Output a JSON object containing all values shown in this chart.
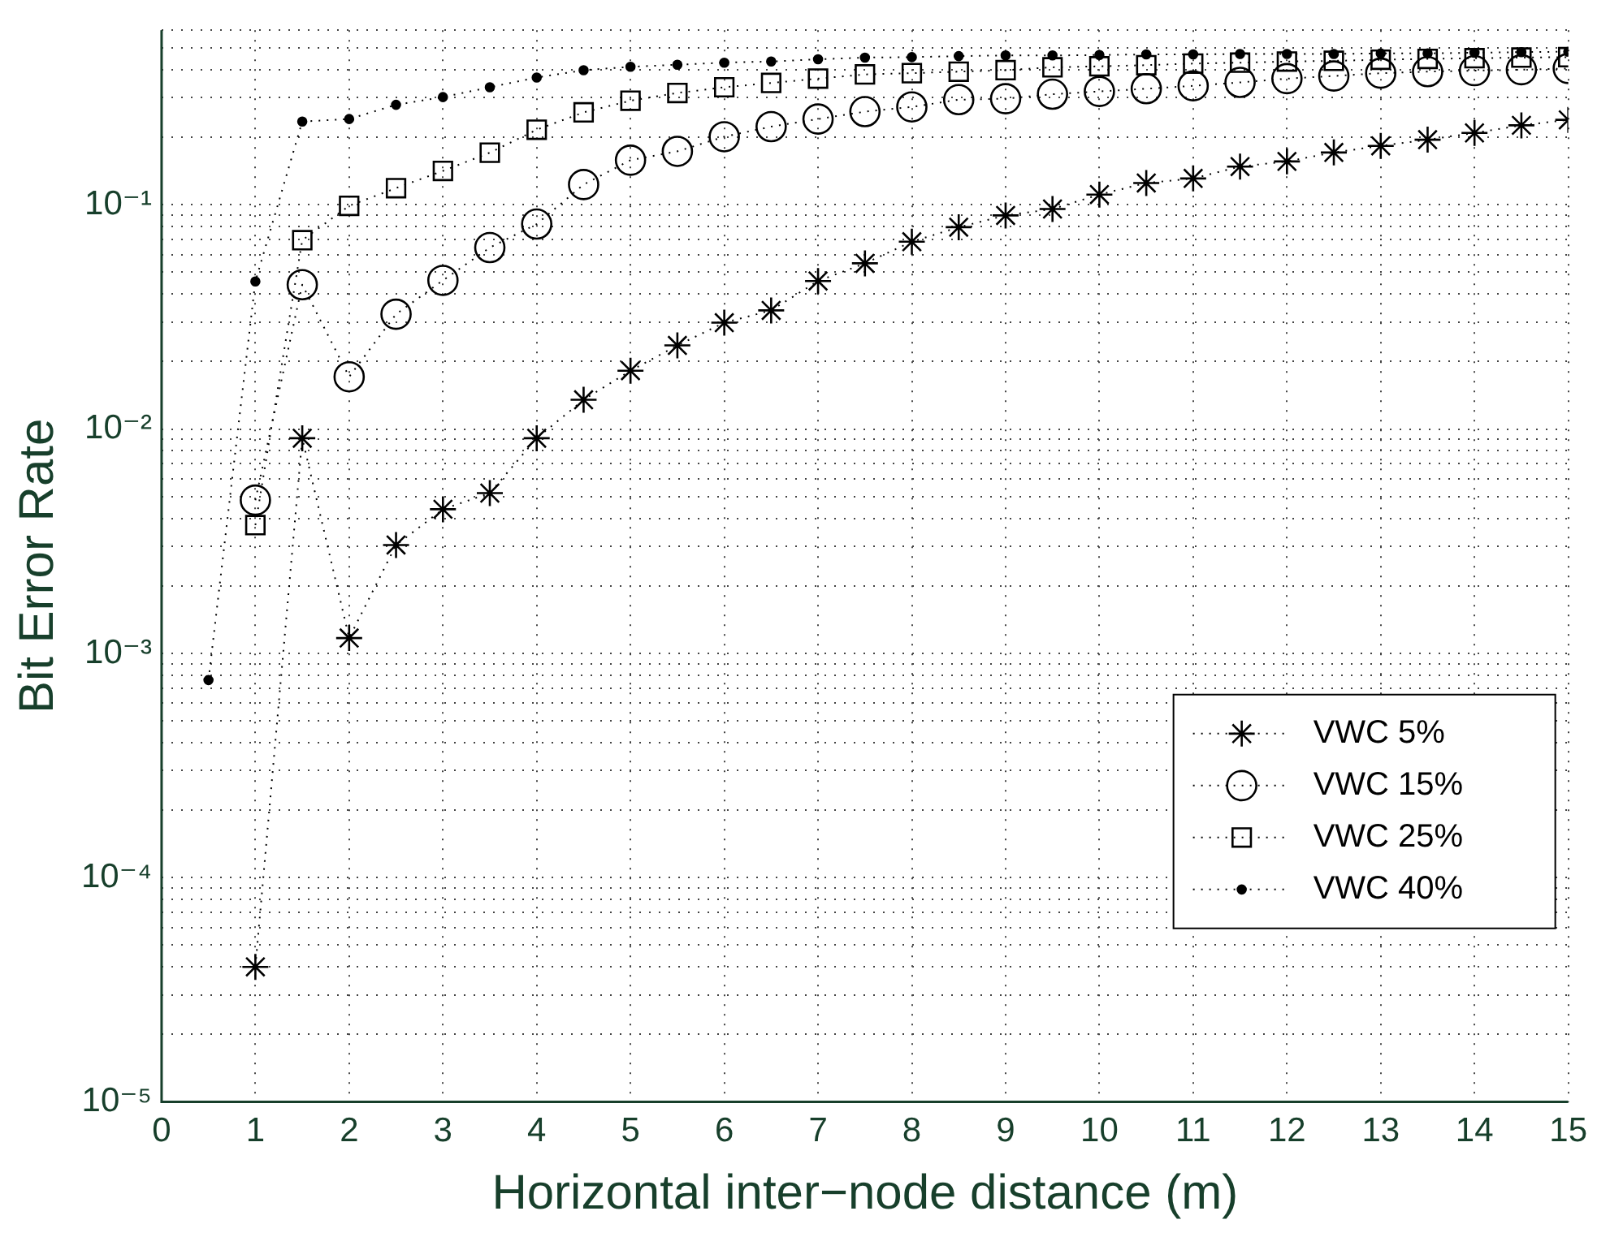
{
  "chart_data": {
    "type": "line",
    "xlabel": "Horizontal inter−node distance (m)",
    "ylabel": "Bit Error Rate",
    "log": "y",
    "grid": true,
    "legend": "right",
    "line_style": "dotted",
    "xlim": [
      0,
      15
    ],
    "xticks": [
      0,
      1,
      2,
      3,
      4,
      5,
      6,
      7,
      8,
      9,
      10,
      11,
      12,
      13,
      14,
      15
    ],
    "ylim": [
      1e-05,
      0.6
    ],
    "yticks": [
      {
        "value": 1e-05,
        "label": "10⁻⁵"
      },
      {
        "value": 2e-05,
        "label": null
      },
      {
        "value": 3e-05,
        "label": null
      },
      {
        "value": 4e-05,
        "label": null
      },
      {
        "value": 5e-05,
        "label": null
      },
      {
        "value": 6e-05,
        "label": null
      },
      {
        "value": 7e-05,
        "label": null
      },
      {
        "value": 8e-05,
        "label": null
      },
      {
        "value": 9e-05,
        "label": null
      },
      {
        "value": 0.0001,
        "label": "10⁻⁴"
      },
      {
        "value": 0.0002,
        "label": null
      },
      {
        "value": 0.0003,
        "label": null
      },
      {
        "value": 0.0004,
        "label": null
      },
      {
        "value": 0.0005,
        "label": null
      },
      {
        "value": 0.0006,
        "label": null
      },
      {
        "value": 0.0007,
        "label": null
      },
      {
        "value": 0.0008,
        "label": null
      },
      {
        "value": 0.0009,
        "label": null
      },
      {
        "value": 0.001,
        "label": "10⁻³"
      },
      {
        "value": 0.002,
        "label": null
      },
      {
        "value": 0.003,
        "label": null
      },
      {
        "value": 0.004,
        "label": null
      },
      {
        "value": 0.005,
        "label": null
      },
      {
        "value": 0.006,
        "label": null
      },
      {
        "value": 0.007,
        "label": null
      },
      {
        "value": 0.008,
        "label": null
      },
      {
        "value": 0.009,
        "label": null
      },
      {
        "value": 0.01,
        "label": "10⁻²"
      },
      {
        "value": 0.02,
        "label": null
      },
      {
        "value": 0.03,
        "label": null
      },
      {
        "value": 0.04,
        "label": null
      },
      {
        "value": 0.05,
        "label": null
      },
      {
        "value": 0.06,
        "label": null
      },
      {
        "value": 0.07,
        "label": null
      },
      {
        "value": 0.08,
        "label": null
      },
      {
        "value": 0.09,
        "label": null
      },
      {
        "value": 0.1,
        "label": "10⁻¹"
      },
      {
        "value": 0.2,
        "label": null
      },
      {
        "value": 0.3,
        "label": null
      },
      {
        "value": 0.4,
        "label": null
      },
      {
        "value": 0.5,
        "label": null
      },
      {
        "value": 0.6,
        "label": null
      }
    ],
    "series": [
      {
        "name": "VWC 5%",
        "color": "#000000",
        "marker": "cross",
        "x": [
          1,
          1.5,
          2,
          2.5,
          3,
          3.5,
          4,
          4.5,
          5,
          5.5,
          6,
          6.5,
          7,
          7.5,
          8,
          8.5,
          9,
          9.5,
          10,
          10.5,
          11,
          11.5,
          12,
          12.5,
          13,
          13.5,
          14,
          14.5,
          15
        ],
        "values": [
          4e-05,
          0.0091,
          0.00117,
          0.00304,
          0.00439,
          0.00518,
          0.0091,
          0.0135,
          0.0182,
          0.0236,
          0.0298,
          0.0338,
          0.0457,
          0.0548,
          0.0684,
          0.0794,
          0.0896,
          0.0957,
          0.111,
          0.125,
          0.131,
          0.148,
          0.156,
          0.171,
          0.183,
          0.195,
          0.209,
          0.226,
          0.239
        ]
      },
      {
        "name": "VWC 15%",
        "color": "#000000",
        "marker": "circle",
        "x": [
          1,
          1.5,
          2,
          2.5,
          3,
          3.5,
          4,
          4.5,
          5,
          5.5,
          6,
          6.5,
          7,
          7.5,
          8,
          8.5,
          9,
          9.5,
          10,
          10.5,
          11,
          11.5,
          12,
          12.5,
          13,
          13.5,
          14,
          14.5,
          15
        ],
        "values": [
          0.00482,
          0.044,
          0.0171,
          0.0325,
          0.046,
          0.0644,
          0.082,
          0.123,
          0.158,
          0.173,
          0.201,
          0.223,
          0.241,
          0.26,
          0.273,
          0.294,
          0.297,
          0.311,
          0.32,
          0.329,
          0.339,
          0.351,
          0.365,
          0.375,
          0.386,
          0.392,
          0.396,
          0.4,
          0.405
        ]
      },
      {
        "name": "VWC 25%",
        "color": "#000000",
        "marker": "square",
        "x": [
          1,
          1.5,
          2,
          2.5,
          3,
          3.5,
          4,
          4.5,
          5,
          5.5,
          6,
          6.5,
          7,
          7.5,
          8,
          8.5,
          9,
          9.5,
          10,
          10.5,
          11,
          11.5,
          12,
          12.5,
          13,
          13.5,
          14,
          14.5,
          15
        ],
        "values": [
          0.00373,
          0.0695,
          0.0989,
          0.1186,
          0.1415,
          0.1706,
          0.216,
          0.258,
          0.291,
          0.315,
          0.334,
          0.349,
          0.365,
          0.381,
          0.386,
          0.392,
          0.398,
          0.41,
          0.414,
          0.419,
          0.426,
          0.43,
          0.435,
          0.438,
          0.443,
          0.447,
          0.45,
          0.453,
          0.455
        ]
      },
      {
        "name": "VWC 40%",
        "color": "#000000",
        "marker": "point",
        "x": [
          0.5,
          1,
          1.5,
          2,
          2.5,
          3,
          3.5,
          4,
          4.5,
          5,
          5.5,
          6,
          6.5,
          7,
          7.5,
          8,
          8.5,
          9,
          9.5,
          10,
          10.5,
          11,
          11.5,
          12,
          12.5,
          13,
          13.5,
          14,
          14.5,
          15
        ],
        "values": [
          0.00076,
          0.0455,
          0.235,
          0.241,
          0.279,
          0.302,
          0.334,
          0.369,
          0.398,
          0.412,
          0.421,
          0.43,
          0.435,
          0.445,
          0.453,
          0.455,
          0.46,
          0.463,
          0.463,
          0.465,
          0.468,
          0.468,
          0.47,
          0.47,
          0.47,
          0.473,
          0.473,
          0.476,
          0.479,
          0.481
        ]
      }
    ]
  }
}
